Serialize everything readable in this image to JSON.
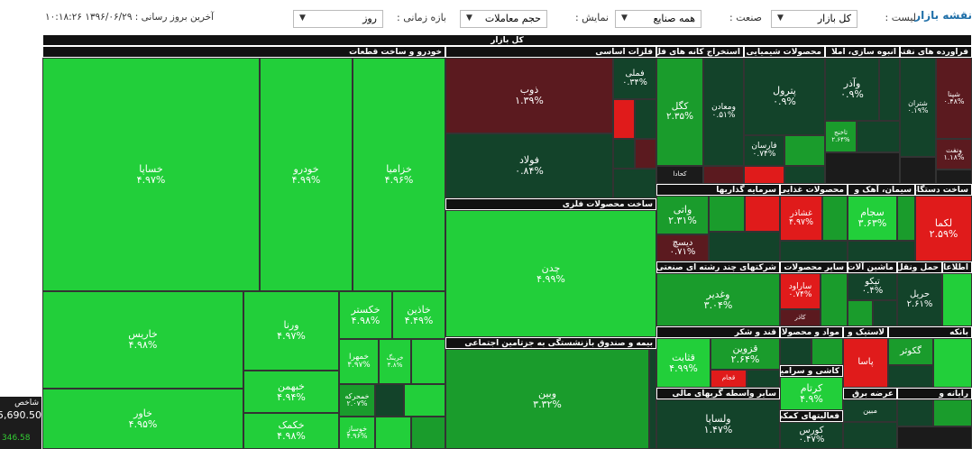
{
  "header": {
    "title": "نقشه بازار",
    "filters": [
      {
        "label": "لیست :",
        "value": "کل بازار"
      },
      {
        "label": "صنعت :",
        "value": "همه صنایع"
      },
      {
        "label": "نمایش :",
        "value": "حجم معاملات"
      },
      {
        "label": "بازه زمانی :",
        "value": "روز"
      }
    ],
    "last_update": "آخرین بروز رسانی : ۱۳۹۶/۰۶/۲۹ ۱۰:۱۸:۲۶"
  },
  "index_widget": {
    "label": "شاخص",
    "value": "5,690.50",
    "change": "346.58"
  },
  "treemap": {
    "title": "کل بازار",
    "sectors": [
      {
        "name": "خودرو و ساخت قطعات",
        "tiles": [
          {
            "symbol": "خساپا",
            "change": "۴.۹۷%"
          },
          {
            "symbol": "خودرو",
            "change": "۴.۹۹%"
          },
          {
            "symbol": "خزامیا",
            "change": "۴.۹۶%"
          },
          {
            "symbol": "خاریس",
            "change": "۴.۹۸%"
          },
          {
            "symbol": "خاور",
            "change": "۴.۹۵%"
          },
          {
            "symbol": "ورنا",
            "change": "۴.۹۷%"
          },
          {
            "symbol": "خبهمن",
            "change": "۴.۹۴%"
          },
          {
            "symbol": "خکمک",
            "change": "۴.۹۸%"
          },
          {
            "symbol": "خکستر",
            "change": "۴.۹۸%"
          },
          {
            "symbol": "خاذین",
            "change": "۴.۴۹%"
          },
          {
            "symbol": "خمهرا",
            "change": "۴.۹۷%"
          },
          {
            "symbol": "خرینگ",
            "change": "۴.۸%"
          },
          {
            "symbol": "خمحرکه",
            "change": "۲.۰۷%"
          },
          {
            "symbol": "خوساز",
            "change": "۴.۹۶%"
          }
        ]
      },
      {
        "name": "فلزات اساسی",
        "tiles": [
          {
            "symbol": "ذوب",
            "change": "۱.۳۹%"
          },
          {
            "symbol": "فولاد",
            "change": "۰.۸۴%"
          },
          {
            "symbol": "فملی",
            "change": "۰.۳۴%"
          }
        ]
      },
      {
        "name": "ساخت محصولات فلزی",
        "tiles": [
          {
            "symbol": "چدن",
            "change": "۴.۹۹%"
          }
        ]
      },
      {
        "name": "بیمه و صندوق بازنشستگی به جزتامین اجتماعی",
        "tiles": [
          {
            "symbol": "وبین",
            "change": "۳.۳۲%"
          }
        ]
      },
      {
        "name": "استخراج کانه های فل",
        "tiles": [
          {
            "symbol": "کگل",
            "change": "۲.۳۵%"
          },
          {
            "symbol": "ومعادن",
            "change": "۰.۵۱%"
          },
          {
            "symbol": "کحادا"
          }
        ]
      },
      {
        "name": "محصولات شیمیایی",
        "tiles": [
          {
            "symbol": "پترول",
            "change": "۰.۹%"
          },
          {
            "symbol": "فارسان",
            "change": "۰.۷۴%"
          }
        ]
      },
      {
        "name": "انبوه سازی، املا",
        "tiles": [
          {
            "symbol": "وآذر",
            "change": "۰.۹%"
          },
          {
            "symbol": "تاخنج",
            "change": "۲.۶۴%"
          }
        ]
      },
      {
        "name": "فراورده های نفتی",
        "tiles": [
          {
            "symbol": "شتران",
            "change": "۰.۱۹%"
          },
          {
            "symbol": "شپنا",
            "change": "۰.۴۸%"
          },
          {
            "symbol": "ونفت",
            "change": "۱.۱۸%"
          }
        ]
      },
      {
        "name": "سرمایه گذاریها",
        "tiles": [
          {
            "symbol": "واتی",
            "change": "۲.۳۱%"
          },
          {
            "symbol": "دیسچ",
            "change": "۰.۷۱%"
          }
        ]
      },
      {
        "name": "محصولات غذایی",
        "tiles": [
          {
            "symbol": "غشاذر",
            "change": "۴.۹۷%"
          }
        ]
      },
      {
        "name": "سیمان، آهک و",
        "tiles": [
          {
            "symbol": "سجام",
            "change": "۳.۶۳%"
          }
        ]
      },
      {
        "name": "ساخت دستگاه",
        "tiles": [
          {
            "symbol": "لکما",
            "change": "۲.۵۹%"
          }
        ]
      },
      {
        "name": "شرکتهای چند رشته ای صنعتی",
        "tiles": [
          {
            "symbol": "وغدیر",
            "change": "۳.۰۴%"
          }
        ]
      },
      {
        "name": "سایر محصولات",
        "tiles": [
          {
            "symbol": "ساراود",
            "change": "۰.۷۴%"
          },
          {
            "symbol": "کاذر"
          }
        ]
      },
      {
        "name": "ماشین آلات",
        "tiles": [
          {
            "symbol": "تیکو",
            "change": "۰.۴%"
          }
        ]
      },
      {
        "name": "حمل ونقل",
        "tiles": [
          {
            "symbol": "حریل",
            "change": "۲.۶۱%"
          }
        ]
      },
      {
        "name": "اطلاعات",
        "tiles": []
      },
      {
        "name": "قند و شکر",
        "tiles": [
          {
            "symbol": "قثابت",
            "change": "۴.۹۹%"
          },
          {
            "symbol": "قزوین",
            "change": "۲.۶۴%"
          },
          {
            "symbol": "قجام"
          }
        ]
      },
      {
        "name": "مواد و محصولات",
        "tiles": []
      },
      {
        "name": "کاشی و سرامیک",
        "tiles": [
          {
            "symbol": "کرتام",
            "change": "۴.۹%"
          }
        ]
      },
      {
        "name": "سایر واسطه گریهای مالی",
        "tiles": [
          {
            "symbol": "ولساپا",
            "change": "۱.۴۷%"
          }
        ]
      },
      {
        "name": "فعالیتهای کمکی",
        "tiles": [
          {
            "symbol": "کورس",
            "change": "۰.۴۷%"
          }
        ]
      },
      {
        "name": "لاستیک و",
        "tiles": [
          {
            "symbol": "پاسا"
          }
        ]
      },
      {
        "name": "بانکه",
        "tiles": [
          {
            "symbol": "گکوثر"
          }
        ]
      },
      {
        "name": "عرضه برق",
        "tiles": [
          {
            "symbol": "مبین"
          }
        ]
      },
      {
        "name": "رایانه و",
        "tiles": []
      }
    ]
  }
}
